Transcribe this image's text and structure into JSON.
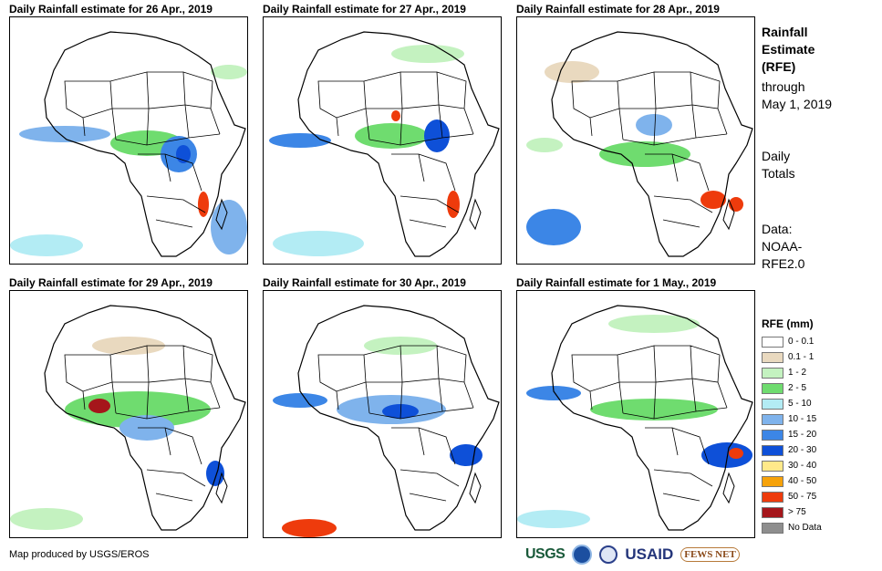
{
  "panels": [
    {
      "title": "Daily Rainfall estimate for 26 Apr., 2019"
    },
    {
      "title": "Daily Rainfall estimate for 27 Apr., 2019"
    },
    {
      "title": "Daily Rainfall estimate for 28 Apr., 2019"
    },
    {
      "title": "Daily Rainfall estimate for 29 Apr., 2019"
    },
    {
      "title": "Daily Rainfall estimate for 30 Apr., 2019"
    },
    {
      "title": "Daily Rainfall estimate for 1 May., 2019"
    }
  ],
  "sidebar": {
    "title_line1": "Rainfall",
    "title_line2": "Estimate",
    "title_line3": "(RFE)",
    "through_line1": "through",
    "through_line2": "May 1, 2019",
    "totals_line1": "Daily",
    "totals_line2": "Totals",
    "data_line1": "Data:",
    "data_line2": "NOAA-",
    "data_line3": "RFE2.0"
  },
  "legend": {
    "title": "RFE (mm)",
    "items": [
      {
        "label": "0 - 0.1",
        "color": "#ffffff"
      },
      {
        "label": "0.1 - 1",
        "color": "#e9d9bf"
      },
      {
        "label": "1 - 2",
        "color": "#c4f2c0"
      },
      {
        "label": "2 - 5",
        "color": "#6fdc6f"
      },
      {
        "label": "5 - 10",
        "color": "#b3ecf4"
      },
      {
        "label": "10 - 15",
        "color": "#7fb3ec"
      },
      {
        "label": "15 - 20",
        "color": "#3c86e6"
      },
      {
        "label": "20 - 30",
        "color": "#0e50d8"
      },
      {
        "label": "30 - 40",
        "color": "#ffe98a"
      },
      {
        "label": "40 - 50",
        "color": "#f6a20a"
      },
      {
        "label": "50 - 75",
        "color": "#ee3b0c"
      },
      {
        "label": "> 75",
        "color": "#a5161b"
      },
      {
        "label": "No Data",
        "color": "#8e8e8e"
      }
    ]
  },
  "credit": "Map produced by USGS/EROS",
  "logos": {
    "usgs": "USGS",
    "usaid": "USAID",
    "fews": "FEWS NET"
  }
}
